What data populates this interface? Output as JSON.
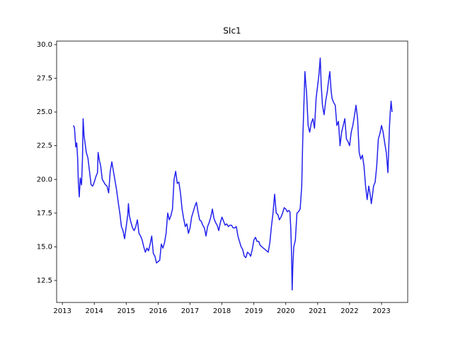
{
  "chart_data": {
    "type": "line",
    "title": "SIc1",
    "x": [
      2013.35,
      2013.38,
      2013.42,
      2013.45,
      2013.48,
      2013.5,
      2013.53,
      2013.56,
      2013.6,
      2013.63,
      2013.65,
      2013.68,
      2013.7,
      2013.75,
      2013.8,
      2013.85,
      2013.9,
      2013.95,
      2014.0,
      2014.05,
      2014.1,
      2014.12,
      2014.16,
      2014.2,
      2014.25,
      2014.3,
      2014.35,
      2014.4,
      2014.45,
      2014.5,
      2014.55,
      2014.6,
      2014.65,
      2014.7,
      2014.75,
      2014.8,
      2014.85,
      2014.9,
      2014.95,
      2015.0,
      2015.05,
      2015.07,
      2015.1,
      2015.15,
      2015.2,
      2015.25,
      2015.3,
      2015.35,
      2015.4,
      2015.45,
      2015.5,
      2015.55,
      2015.6,
      2015.65,
      2015.7,
      2015.75,
      2015.8,
      2015.85,
      2015.9,
      2015.95,
      2016.0,
      2016.05,
      2016.1,
      2016.15,
      2016.2,
      2016.25,
      2016.3,
      2016.35,
      2016.4,
      2016.45,
      2016.5,
      2016.55,
      2016.6,
      2016.65,
      2016.7,
      2016.75,
      2016.8,
      2016.85,
      2016.9,
      2016.95,
      2017.0,
      2017.05,
      2017.1,
      2017.15,
      2017.2,
      2017.25,
      2017.3,
      2017.35,
      2017.4,
      2017.45,
      2017.5,
      2017.55,
      2017.6,
      2017.65,
      2017.7,
      2017.75,
      2017.8,
      2017.85,
      2017.9,
      2017.95,
      2018.0,
      2018.05,
      2018.1,
      2018.15,
      2018.2,
      2018.25,
      2018.3,
      2018.35,
      2018.4,
      2018.45,
      2018.5,
      2018.55,
      2018.6,
      2018.65,
      2018.7,
      2018.75,
      2018.8,
      2018.85,
      2018.9,
      2018.95,
      2019.0,
      2019.05,
      2019.1,
      2019.15,
      2019.2,
      2019.25,
      2019.3,
      2019.35,
      2019.4,
      2019.45,
      2019.5,
      2019.55,
      2019.6,
      2019.65,
      2019.7,
      2019.75,
      2019.8,
      2019.85,
      2019.9,
      2019.95,
      2020.0,
      2020.05,
      2020.1,
      2020.13,
      2020.16,
      2020.18,
      2020.2,
      2020.22,
      2020.25,
      2020.3,
      2020.35,
      2020.4,
      2020.45,
      2020.5,
      2020.53,
      2020.56,
      2020.58,
      2020.6,
      2020.63,
      2020.65,
      2020.7,
      2020.75,
      2020.8,
      2020.85,
      2020.9,
      2020.95,
      2021.0,
      2021.04,
      2021.08,
      2021.11,
      2021.15,
      2021.2,
      2021.25,
      2021.3,
      2021.35,
      2021.38,
      2021.42,
      2021.45,
      2021.5,
      2021.55,
      2021.6,
      2021.65,
      2021.7,
      2021.75,
      2021.8,
      2021.85,
      2021.9,
      2021.95,
      2022.0,
      2022.05,
      2022.1,
      2022.15,
      2022.2,
      2022.25,
      2022.3,
      2022.35,
      2022.4,
      2022.45,
      2022.5,
      2022.55,
      2022.6,
      2022.65,
      2022.68,
      2022.72,
      2022.75,
      2022.8,
      2022.85,
      2022.9,
      2022.95,
      2023.0,
      2023.05,
      2023.1,
      2023.15,
      2023.2,
      2023.25,
      2023.28,
      2023.3,
      2023.33
    ],
    "series": [
      {
        "name": "SIc1",
        "color": "#2222ee",
        "values": [
          24.0,
          23.8,
          22.4,
          22.7,
          21.5,
          19.8,
          18.7,
          20.1,
          19.6,
          21.5,
          24.5,
          23.2,
          22.9,
          22.0,
          21.6,
          20.6,
          19.6,
          19.5,
          19.8,
          20.2,
          20.5,
          22.0,
          21.4,
          21.0,
          20.0,
          19.8,
          19.6,
          19.5,
          19.0,
          20.6,
          21.3,
          20.6,
          19.9,
          19.2,
          18.3,
          17.5,
          16.5,
          16.2,
          15.6,
          16.5,
          17.4,
          18.2,
          17.3,
          16.8,
          16.4,
          16.2,
          16.5,
          17.0,
          16.0,
          15.8,
          15.5,
          15.0,
          14.6,
          14.9,
          14.7,
          15.2,
          15.8,
          14.5,
          14.3,
          13.8,
          13.9,
          14.0,
          15.2,
          14.9,
          15.3,
          16.0,
          17.5,
          17.0,
          17.3,
          17.8,
          20.0,
          20.6,
          19.7,
          19.8,
          19.0,
          17.8,
          17.1,
          16.5,
          16.7,
          16.0,
          16.4,
          17.2,
          17.6,
          18.0,
          18.3,
          17.6,
          17.0,
          16.9,
          16.6,
          16.4,
          15.8,
          16.5,
          16.8,
          17.2,
          17.8,
          17.1,
          16.8,
          16.6,
          16.2,
          16.8,
          17.2,
          16.9,
          16.6,
          16.7,
          16.5,
          16.6,
          16.6,
          16.4,
          16.4,
          16.5,
          15.8,
          15.4,
          15.0,
          14.8,
          14.3,
          14.2,
          14.6,
          14.5,
          14.3,
          14.8,
          15.5,
          15.7,
          15.4,
          15.4,
          15.1,
          15.0,
          14.9,
          14.8,
          14.7,
          14.6,
          15.3,
          16.5,
          17.5,
          18.9,
          17.5,
          17.4,
          17.0,
          17.2,
          17.5,
          17.9,
          17.8,
          17.6,
          17.7,
          17.6,
          16.2,
          14.5,
          11.8,
          13.5,
          15.0,
          15.5,
          17.5,
          17.6,
          17.8,
          19.5,
          22.8,
          25.0,
          26.5,
          28.0,
          27.0,
          26.5,
          24.0,
          23.5,
          24.2,
          24.5,
          23.8,
          26.0,
          27.0,
          27.8,
          29.0,
          27.0,
          25.5,
          24.8,
          25.8,
          26.5,
          27.5,
          28.0,
          26.6,
          26.0,
          25.7,
          25.5,
          24.0,
          24.3,
          22.5,
          23.5,
          24.0,
          24.5,
          23.0,
          22.8,
          22.5,
          23.5,
          24.0,
          24.7,
          25.5,
          24.5,
          22.0,
          21.5,
          21.8,
          21.0,
          19.5,
          18.5,
          19.5,
          18.8,
          18.2,
          18.9,
          19.5,
          19.8,
          21.0,
          23.0,
          23.4,
          24.0,
          23.5,
          22.7,
          22.0,
          20.5,
          24.0,
          25.2,
          25.8,
          25.0
        ]
      }
    ],
    "xlim": [
      2012.82,
      2023.82
    ],
    "xticks": [
      2013,
      2014,
      2015,
      2016,
      2017,
      2018,
      2019,
      2020,
      2021,
      2022,
      2023
    ],
    "ylim": [
      10.87,
      30.26
    ],
    "yticks": [
      12.5,
      {
        "value": 15,
        "label": "15.0"
      },
      17.5,
      {
        "value": 20,
        "label": "20.0"
      },
      22.5,
      {
        "value": 25,
        "label": "25.0"
      },
      27.5,
      {
        "value": 30,
        "label": "30.0"
      }
    ],
    "grid": false
  }
}
